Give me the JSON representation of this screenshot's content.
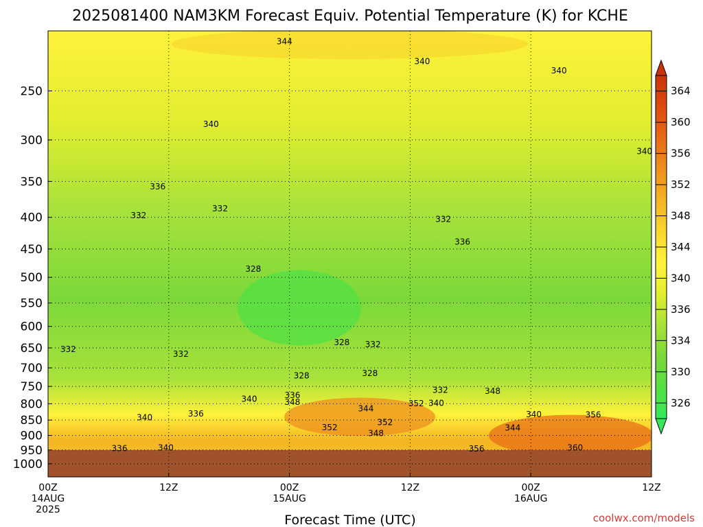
{
  "chart_data": {
    "type": "heatmap",
    "title": "2025081400 NAM3KM Forecast Equiv. Potential Temperature (K) for KCHE",
    "xlabel": "Forecast Time (UTC)",
    "ylabel": "",
    "y_scale": "log",
    "y_reversed": true,
    "y_ticks": [
      250,
      300,
      350,
      400,
      450,
      500,
      550,
      600,
      650,
      700,
      750,
      800,
      850,
      900,
      950,
      1000
    ],
    "ylim": [
      1050,
      200
    ],
    "x_ticks": [
      {
        "hour": 0,
        "l1": "00Z",
        "l2": "14AUG",
        "l3": "2025"
      },
      {
        "hour": 12,
        "l1": "12Z",
        "l2": "",
        "l3": ""
      },
      {
        "hour": 24,
        "l1": "00Z",
        "l2": "15AUG",
        "l3": ""
      },
      {
        "hour": 36,
        "l1": "12Z",
        "l2": "",
        "l3": ""
      },
      {
        "hour": 48,
        "l1": "00Z",
        "l2": "16AUG",
        "l3": ""
      },
      {
        "hour": 60,
        "l1": "12Z",
        "l2": "",
        "l3": ""
      }
    ],
    "xlim": [
      0,
      60
    ],
    "grid": true,
    "colorbar": {
      "levels": [
        326,
        330,
        334,
        336,
        340,
        344,
        348,
        352,
        356,
        360,
        364
      ],
      "colors": [
        "#33e85a",
        "#55e043",
        "#7cd83a",
        "#a8e23a",
        "#e3ee2e",
        "#fff23a",
        "#f7d72e",
        "#f4b423",
        "#ee8f1d",
        "#e76a14",
        "#dd4a0f",
        "#c83408"
      ]
    },
    "underground_color": "#a0522d",
    "surface_pressure": 950,
    "contour_labels": [
      {
        "hour": 23.5,
        "p": 208,
        "text": "344"
      },
      {
        "hour": 37.2,
        "p": 224,
        "text": "340"
      },
      {
        "hour": 50.8,
        "p": 232,
        "text": "340"
      },
      {
        "hour": 16.2,
        "p": 283,
        "text": "340"
      },
      {
        "hour": 59.3,
        "p": 313,
        "text": "340"
      },
      {
        "hour": 10.9,
        "p": 357,
        "text": "336"
      },
      {
        "hour": 9.0,
        "p": 397,
        "text": "332"
      },
      {
        "hour": 17.1,
        "p": 387,
        "text": "332"
      },
      {
        "hour": 39.3,
        "p": 403,
        "text": "332"
      },
      {
        "hour": 41.2,
        "p": 438,
        "text": "336"
      },
      {
        "hour": 20.4,
        "p": 485,
        "text": "328"
      },
      {
        "hour": 2.0,
        "p": 653,
        "text": "332"
      },
      {
        "hour": 13.2,
        "p": 665,
        "text": "332"
      },
      {
        "hour": 29.2,
        "p": 637,
        "text": "328"
      },
      {
        "hour": 32.3,
        "p": 642,
        "text": "332"
      },
      {
        "hour": 25.2,
        "p": 721,
        "text": "328"
      },
      {
        "hour": 32.0,
        "p": 714,
        "text": "328"
      },
      {
        "hour": 39.0,
        "p": 760,
        "text": "332"
      },
      {
        "hour": 44.2,
        "p": 763,
        "text": "348"
      },
      {
        "hour": 20.0,
        "p": 786,
        "text": "340"
      },
      {
        "hour": 24.3,
        "p": 775,
        "text": "336"
      },
      {
        "hour": 24.3,
        "p": 795,
        "text": "348"
      },
      {
        "hour": 36.6,
        "p": 799,
        "text": "352"
      },
      {
        "hour": 38.6,
        "p": 798,
        "text": "340"
      },
      {
        "hour": 31.6,
        "p": 815,
        "text": "344"
      },
      {
        "hour": 9.6,
        "p": 842,
        "text": "340"
      },
      {
        "hour": 14.7,
        "p": 830,
        "text": "336"
      },
      {
        "hour": 33.5,
        "p": 857,
        "text": "352"
      },
      {
        "hour": 28.0,
        "p": 874,
        "text": "352"
      },
      {
        "hour": 32.6,
        "p": 893,
        "text": "348"
      },
      {
        "hour": 48.3,
        "p": 832,
        "text": "340"
      },
      {
        "hour": 54.2,
        "p": 833,
        "text": "356"
      },
      {
        "hour": 46.2,
        "p": 875,
        "text": "344"
      },
      {
        "hour": 11.7,
        "p": 942,
        "text": "340"
      },
      {
        "hour": 7.1,
        "p": 945,
        "text": "336"
      },
      {
        "hour": 42.6,
        "p": 946,
        "text": "356"
      },
      {
        "hour": 52.4,
        "p": 942,
        "text": "360"
      }
    ]
  },
  "footer": {
    "credit": "coolwx.com/models"
  }
}
